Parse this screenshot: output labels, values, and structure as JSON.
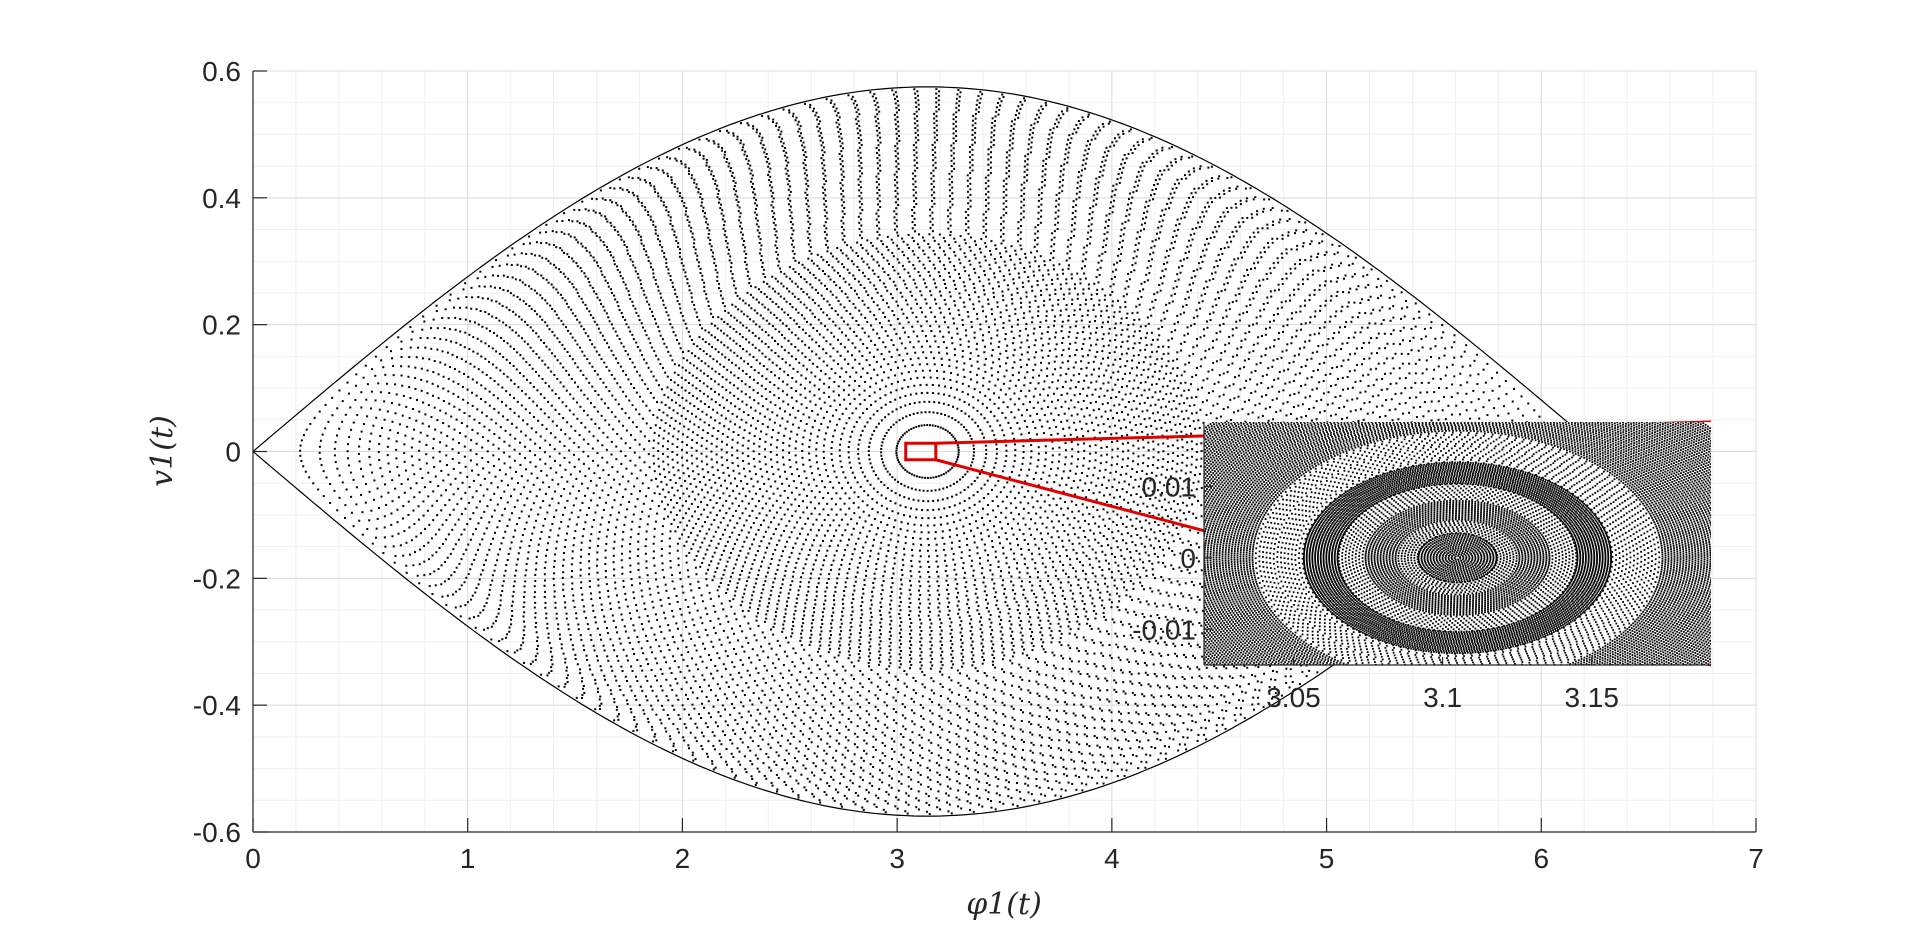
{
  "chart_data": [
    {
      "type": "scatter",
      "title": "",
      "xlabel": "φ1(t)",
      "ylabel": "v1(t)",
      "xlim": [
        0,
        7
      ],
      "ylim": [
        -0.6,
        0.6
      ],
      "x_ticks": [
        "0",
        "1",
        "2",
        "3",
        "4",
        "5",
        "6",
        "7"
      ],
      "y_ticks": [
        "0.6",
        "0.4",
        "0.2",
        "0",
        "-0.2",
        "-0.4",
        "-0.6"
      ],
      "grid": true,
      "minor_grid": true,
      "marker_color": "#000000",
      "series": [
        {
          "description_center": [
            3.1416,
            0
          ],
          "separatrix_vmax": 0.575,
          "separatrix_vmin": -0.575
        }
      ],
      "zoom_box": {
        "x": [
          3.04,
          3.18
        ],
        "y": [
          -0.013,
          0.013
        ],
        "color": "#e00000"
      }
    },
    {
      "type": "scatter",
      "title": "",
      "xlim": [
        3.02,
        3.19
      ],
      "ylim": [
        -0.015,
        0.019
      ],
      "x_ticks": [
        "3.05",
        "3.1",
        "3.15"
      ],
      "y_ticks": [
        "0.01",
        "0",
        "-0.01"
      ],
      "grid": false,
      "marker_color": "#000000",
      "rings_center": [
        3.105,
        0
      ]
    }
  ]
}
